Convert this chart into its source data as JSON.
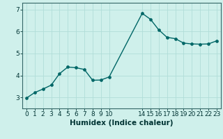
{
  "x": [
    0,
    1,
    2,
    3,
    4,
    5,
    6,
    7,
    8,
    9,
    10,
    14,
    15,
    16,
    17,
    18,
    19,
    20,
    21,
    22,
    23
  ],
  "y": [
    2.97,
    3.22,
    3.38,
    3.56,
    4.08,
    4.38,
    4.35,
    4.27,
    3.78,
    3.79,
    3.93,
    6.82,
    6.55,
    6.07,
    5.73,
    5.67,
    5.47,
    5.43,
    5.42,
    5.43,
    5.57
  ],
  "line_color": "#006666",
  "marker_color": "#006666",
  "bg_color": "#cff0eb",
  "grid_color": "#b0ddd8",
  "xlabel": "Humidex (Indice chaleur)",
  "xlim": [
    -0.5,
    23.5
  ],
  "ylim": [
    2.5,
    7.3
  ],
  "yticks": [
    3,
    4,
    5,
    6,
    7
  ],
  "xticks": [
    0,
    1,
    2,
    3,
    4,
    5,
    6,
    7,
    8,
    9,
    10,
    14,
    15,
    16,
    17,
    18,
    19,
    20,
    21,
    22,
    23
  ],
  "xtick_labels": [
    "0",
    "1",
    "2",
    "3",
    "4",
    "5",
    "6",
    "7",
    "8",
    "9",
    "10",
    "14",
    "15",
    "16",
    "17",
    "18",
    "19",
    "20",
    "21",
    "22",
    "23"
  ],
  "marker_size": 2.8,
  "line_width": 1.0,
  "font_size_label": 7.5,
  "font_size_tick": 6.5
}
